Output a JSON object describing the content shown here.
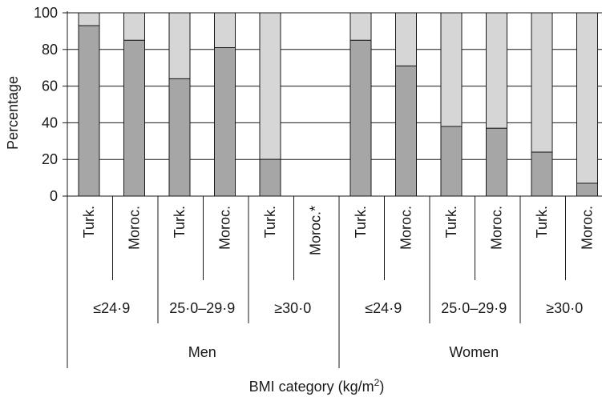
{
  "chart_data": {
    "type": "bar",
    "stacked": true,
    "ylabel": "Percentage",
    "xlabel_main": "BMI category (kg/m",
    "xlabel_sup": "2",
    "xlabel_close": ")",
    "ylim": [
      0,
      100
    ],
    "yticks": [
      "0",
      "20",
      "40",
      "60",
      "80",
      "100"
    ],
    "grid": true,
    "colors": {
      "lower": "#a6a6a6",
      "upper": "#d6d6d6",
      "stroke": "#1a1a1a"
    },
    "categories": [
      "Turk.",
      "Moroc.",
      "Turk.",
      "Moroc.",
      "Turk.",
      "Moroc.*",
      "Turk.",
      "Moroc.",
      "Turk.",
      "Moroc.",
      "Turk.",
      "Moroc."
    ],
    "lower_values": [
      93,
      85,
      64,
      81,
      20,
      null,
      85,
      71,
      38,
      37,
      24,
      7
    ],
    "bmi_groups": [
      "≤24·9",
      "25·0–29·9",
      "≥30·0",
      "≤24·9",
      "25·0–29·9",
      "≥30·0"
    ],
    "sex_groups": [
      "Men",
      "Women"
    ]
  }
}
